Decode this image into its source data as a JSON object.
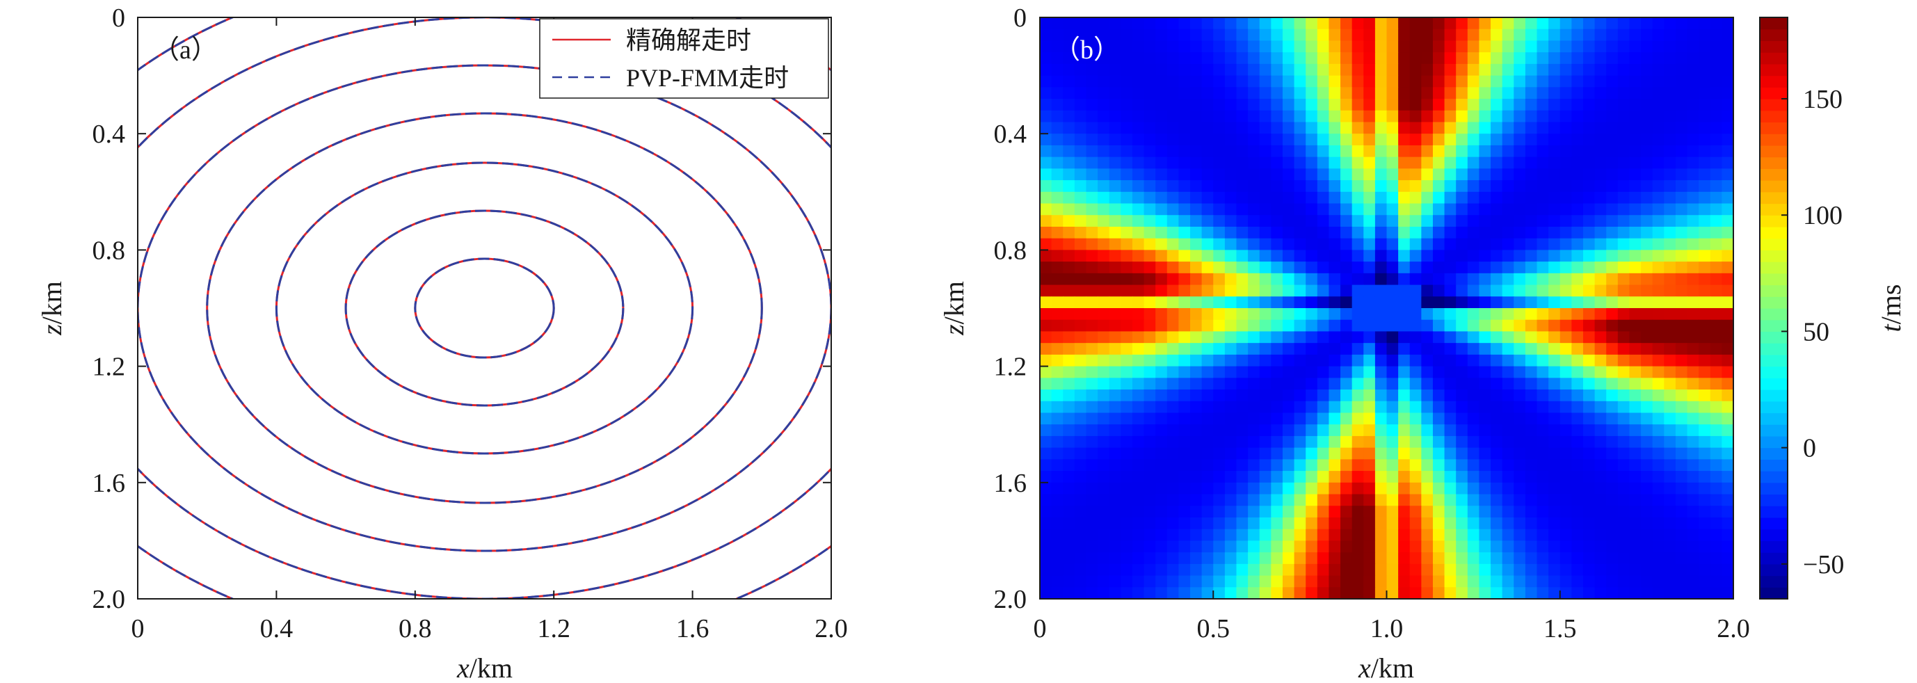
{
  "chart_data": [
    {
      "type": "line",
      "panel_label": "（a）",
      "xlabel_var": "x",
      "xlabel_unit": "/km",
      "ylabel_var": "z",
      "ylabel_unit": "/km",
      "xlim": [
        0,
        2.0
      ],
      "ylim": [
        0,
        2.0
      ],
      "y_inverted": true,
      "x_ticks": [
        "0",
        "0.4",
        "0.8",
        "1.2",
        "1.6",
        "2.0"
      ],
      "y_ticks": [
        "0",
        "0.4",
        "0.8",
        "1.2",
        "1.6",
        "2.0"
      ],
      "legend_position": "top-right",
      "series": [
        {
          "name": "精确解走时",
          "color": "#e0262c",
          "style": "solid"
        },
        {
          "name": "PVP-FMM走时",
          "color": "#2f3f9e",
          "style": "dashed"
        }
      ],
      "contours": {
        "center": [
          1.0,
          1.0
        ],
        "radius_x": [
          0.2,
          0.4,
          0.6,
          0.8,
          1.0,
          1.2,
          1.4
        ],
        "radius_z": [
          0.17,
          0.335,
          0.5,
          0.67,
          0.835,
          1.0,
          1.17
        ]
      }
    },
    {
      "type": "heatmap",
      "panel_label": "（b）",
      "xlabel_var": "x",
      "xlabel_unit": "/km",
      "ylabel_var": "z",
      "ylabel_unit": "/km",
      "xlim": [
        0,
        2.0
      ],
      "ylim": [
        0,
        2.0
      ],
      "y_inverted": true,
      "x_ticks": [
        "0",
        "0.5",
        "1.0",
        "1.5",
        "2.0"
      ],
      "y_ticks": [
        "0",
        "0.4",
        "0.8",
        "1.2",
        "1.6",
        "2.0"
      ],
      "colorbar": {
        "label_var": "t",
        "label_unit": "/ms",
        "range": [
          -65,
          185
        ],
        "tick_values": [
          150,
          100,
          50,
          0,
          -50
        ],
        "tick_labels": [
          "150",
          "100",
          "50",
          "0",
          "−50"
        ],
        "colormap": "jet"
      }
    }
  ]
}
